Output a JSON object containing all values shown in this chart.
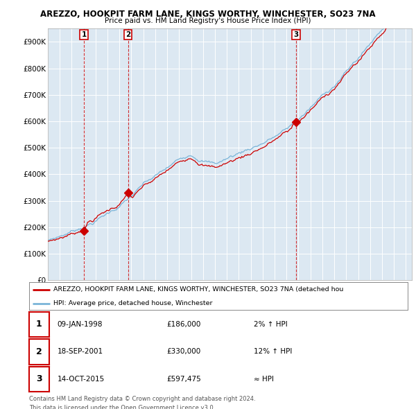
{
  "title_line1": "AREZZO, HOOKPIT FARM LANE, KINGS WORTHY, WINCHESTER, SO23 7NA",
  "title_line2": "Price paid vs. HM Land Registry's House Price Index (HPI)",
  "ytick_labels": [
    "£0",
    "£100K",
    "£200K",
    "£300K",
    "£400K",
    "£500K",
    "£600K",
    "£700K",
    "£800K",
    "£900K"
  ],
  "yticks": [
    0,
    100000,
    200000,
    300000,
    400000,
    500000,
    600000,
    700000,
    800000,
    900000
  ],
  "ylim": [
    0,
    950000
  ],
  "xlim": [
    1995.0,
    2025.5
  ],
  "hpi_color": "#7ab4d8",
  "price_color": "#cc0000",
  "grid_color": "#c8d8e8",
  "chart_bg": "#dce8f2",
  "bg_color": "#ffffff",
  "sale_points": [
    {
      "year": 1998.03,
      "price": 186000,
      "label": "1"
    },
    {
      "year": 2001.72,
      "price": 330000,
      "label": "2"
    },
    {
      "year": 2015.79,
      "price": 597475,
      "label": "3"
    }
  ],
  "table_rows": [
    {
      "num": "1",
      "date": "09-JAN-1998",
      "price": "£186,000",
      "change": "2% ↑ HPI"
    },
    {
      "num": "2",
      "date": "18-SEP-2001",
      "price": "£330,000",
      "change": "12% ↑ HPI"
    },
    {
      "num": "3",
      "date": "14-OCT-2015",
      "price": "£597,475",
      "change": "≈ HPI"
    }
  ],
  "legend_line1": "AREZZO, HOOKPIT FARM LANE, KINGS WORTHY, WINCHESTER, SO23 7NA (detached hou",
  "legend_line2": "HPI: Average price, detached house, Winchester",
  "footer_line1": "Contains HM Land Registry data © Crown copyright and database right 2024.",
  "footer_line2": "This data is licensed under the Open Government Licence v3.0."
}
